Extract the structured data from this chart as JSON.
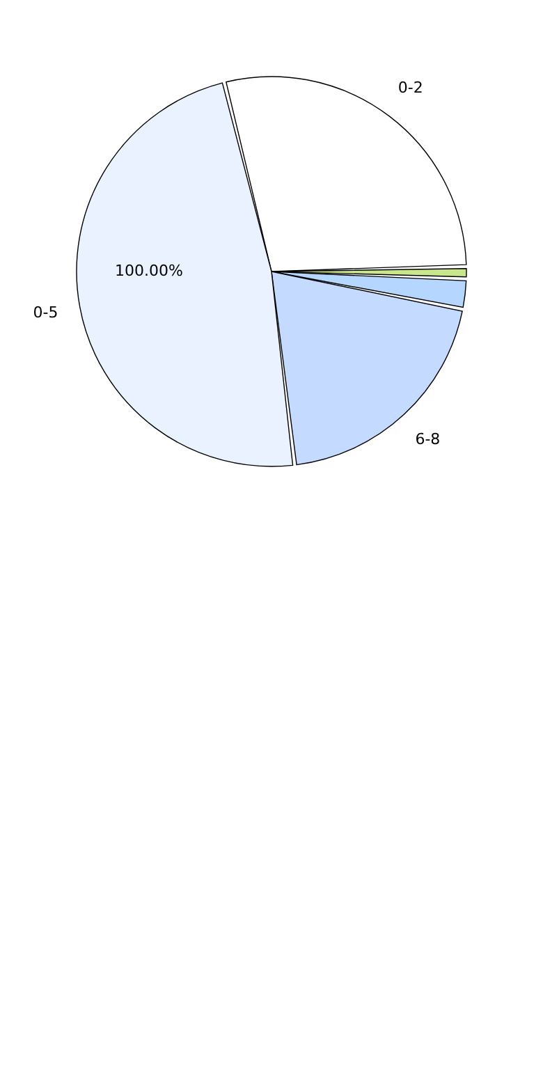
{
  "chart_data": {
    "type": "pie",
    "categories": [
      "0-2",
      null,
      null,
      "6-8",
      "0-5"
    ],
    "values": [
      28.5,
      1,
      2.5,
      20,
      48
    ],
    "colors": [
      "#ffffff",
      "#c9e68c",
      "#b5d6ff",
      "#c4daff",
      "#eaf1ff"
    ],
    "annotations": [
      "100.00%"
    ],
    "legend": false
  }
}
